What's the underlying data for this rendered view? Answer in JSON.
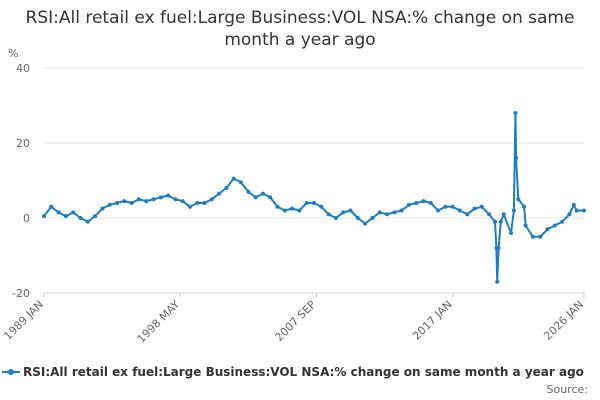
{
  "chart_data": {
    "type": "line",
    "title": "RSI:All retail ex fuel:Large Business:VOL NSA:% change on same month a year ago",
    "ylabel": "%",
    "xlabel": "",
    "ylim": [
      -20,
      40
    ],
    "yticks": [
      -20,
      0,
      20,
      40
    ],
    "grid": "horizontal",
    "legend": "bottom",
    "source": "Source:",
    "xticks": [
      {
        "label": "1989 JAN",
        "x": 1989.0
      },
      {
        "label": "1998 MAY",
        "x": 1998.33
      },
      {
        "label": "2007 SEP",
        "x": 2007.67
      },
      {
        "label": "2017 JAN",
        "x": 2017.0
      },
      {
        "label": "2026 JAN",
        "x": 2026.0
      }
    ],
    "xlim": [
      1989.0,
      2026.0
    ],
    "color": "#1f7ec1",
    "series": [
      {
        "name": "RSI:All retail ex fuel:Large Business:VOL NSA:% change on same month a year ago",
        "points": [
          [
            1989.0,
            0.5
          ],
          [
            1989.5,
            3.0
          ],
          [
            1990.0,
            1.5
          ],
          [
            1990.5,
            0.5
          ],
          [
            1991.0,
            1.5
          ],
          [
            1991.5,
            0.0
          ],
          [
            1992.0,
            -1.0
          ],
          [
            1992.5,
            0.5
          ],
          [
            1993.0,
            2.5
          ],
          [
            1993.5,
            3.5
          ],
          [
            1994.0,
            4.0
          ],
          [
            1994.5,
            4.5
          ],
          [
            1995.0,
            4.0
          ],
          [
            1995.5,
            5.0
          ],
          [
            1996.0,
            4.5
          ],
          [
            1996.5,
            5.0
          ],
          [
            1997.0,
            5.5
          ],
          [
            1997.5,
            6.0
          ],
          [
            1998.0,
            5.0
          ],
          [
            1998.5,
            4.5
          ],
          [
            1999.0,
            3.0
          ],
          [
            1999.5,
            4.0
          ],
          [
            2000.0,
            4.0
          ],
          [
            2000.5,
            5.0
          ],
          [
            2001.0,
            6.5
          ],
          [
            2001.5,
            8.0
          ],
          [
            2002.0,
            10.5
          ],
          [
            2002.5,
            9.5
          ],
          [
            2003.0,
            7.0
          ],
          [
            2003.5,
            5.5
          ],
          [
            2004.0,
            6.5
          ],
          [
            2004.5,
            5.5
          ],
          [
            2005.0,
            3.0
          ],
          [
            2005.5,
            2.0
          ],
          [
            2006.0,
            2.5
          ],
          [
            2006.5,
            2.0
          ],
          [
            2007.0,
            4.0
          ],
          [
            2007.5,
            4.0
          ],
          [
            2008.0,
            3.0
          ],
          [
            2008.5,
            1.0
          ],
          [
            2009.0,
            0.0
          ],
          [
            2009.5,
            1.5
          ],
          [
            2010.0,
            2.0
          ],
          [
            2010.5,
            0.0
          ],
          [
            2011.0,
            -1.5
          ],
          [
            2011.5,
            0.0
          ],
          [
            2012.0,
            1.5
          ],
          [
            2012.5,
            1.0
          ],
          [
            2013.0,
            1.5
          ],
          [
            2013.5,
            2.0
          ],
          [
            2014.0,
            3.5
          ],
          [
            2014.5,
            4.0
          ],
          [
            2015.0,
            4.5
          ],
          [
            2015.5,
            4.0
          ],
          [
            2016.0,
            2.0
          ],
          [
            2016.5,
            3.0
          ],
          [
            2017.0,
            3.0
          ],
          [
            2017.5,
            2.0
          ],
          [
            2018.0,
            1.0
          ],
          [
            2018.5,
            2.5
          ],
          [
            2019.0,
            3.0
          ],
          [
            2019.5,
            1.0
          ],
          [
            2019.9,
            -1.0
          ],
          [
            2020.0,
            -8.0
          ],
          [
            2020.05,
            -17.0
          ],
          [
            2020.15,
            -8.0
          ],
          [
            2020.3,
            -1.0
          ],
          [
            2020.5,
            1.0
          ],
          [
            2021.0,
            -4.0
          ],
          [
            2021.2,
            2.0
          ],
          [
            2021.3,
            28.0
          ],
          [
            2021.35,
            16.0
          ],
          [
            2021.5,
            5.0
          ],
          [
            2021.9,
            3.0
          ],
          [
            2022.0,
            -2.0
          ],
          [
            2022.5,
            -5.0
          ],
          [
            2023.0,
            -5.0
          ],
          [
            2023.5,
            -3.0
          ],
          [
            2024.0,
            -2.0
          ],
          [
            2024.5,
            -1.0
          ],
          [
            2025.0,
            1.0
          ],
          [
            2025.3,
            3.5
          ],
          [
            2025.5,
            2.0
          ],
          [
            2026.0,
            2.0
          ]
        ]
      }
    ]
  }
}
